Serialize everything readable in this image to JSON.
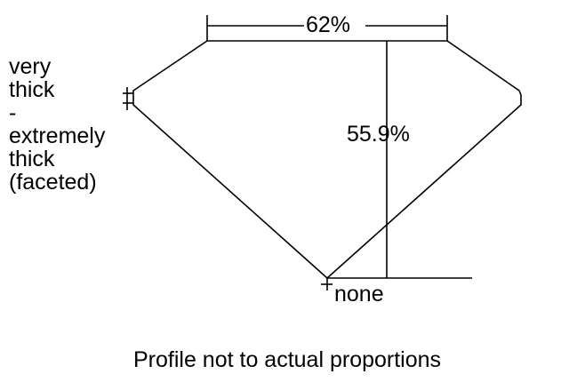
{
  "diagram": {
    "table_percent": "62%",
    "depth_percent": "55.9%",
    "girdle_label_lines": [
      "very",
      "thick",
      "-",
      "extremely",
      "thick",
      "(faceted)"
    ],
    "culet_label": "none",
    "caption": "Profile not to actual proportions",
    "line_color": "#000000",
    "background_color": "#ffffff"
  }
}
